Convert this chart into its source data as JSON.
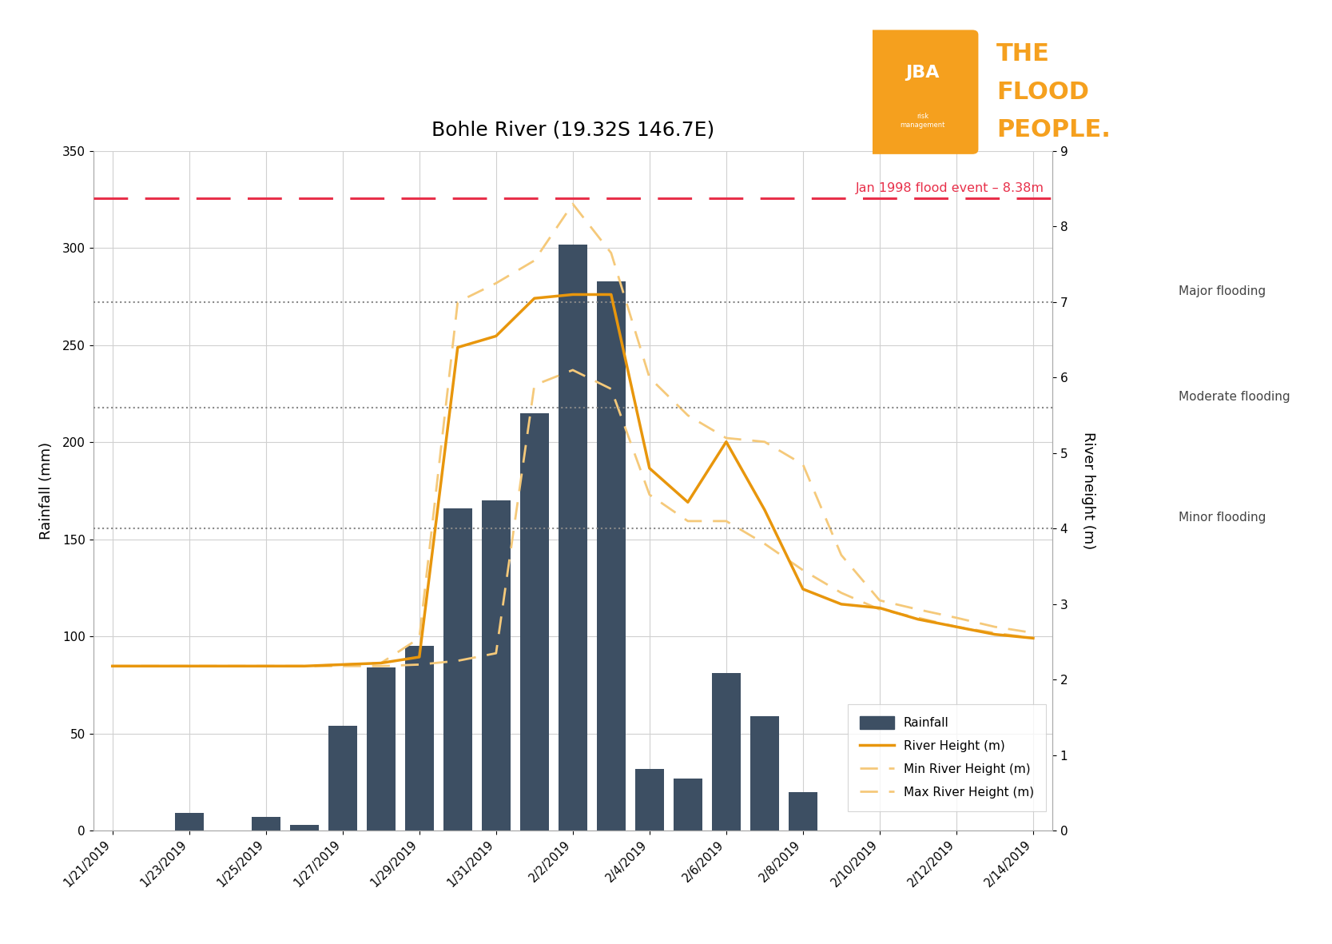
{
  "title": "Bohle River (19.32S 146.7E)",
  "title_fontsize": 18,
  "background_color": "#ffffff",
  "bar_color": "#3d4f63",
  "river_height_color": "#e8960c",
  "min_height_color": "#f5c97a",
  "max_height_color": "#f5c97a",
  "ref_line_color": "#e8304a",
  "flood_line_color": "#888888",
  "ylabel_left": "Rainfall (mm)",
  "ylabel_right": "River height (m)",
  "ylim_left": [
    0,
    350
  ],
  "ylim_right": [
    0,
    9
  ],
  "yticks_left": [
    0,
    50,
    100,
    150,
    200,
    250,
    300,
    350
  ],
  "yticks_right": [
    0,
    1,
    2,
    3,
    4,
    5,
    6,
    7,
    8,
    9
  ],
  "jan1998_level": 8.38,
  "jan1998_label": "Jan 1998 flood event – 8.38m",
  "major_flooding_m": 7.0,
  "moderate_flooding_m": 5.6,
  "minor_flooding_m": 4.0,
  "dates": [
    "1/21/2019",
    "1/22/2019",
    "1/23/2019",
    "1/24/2019",
    "1/25/2019",
    "1/26/2019",
    "1/27/2019",
    "1/28/2019",
    "1/29/2019",
    "1/30/2019",
    "1/31/2019",
    "2/1/2019",
    "2/2/2019",
    "2/3/2019",
    "2/4/2019",
    "2/5/2019",
    "2/6/2019",
    "2/7/2019",
    "2/8/2019",
    "2/9/2019",
    "2/10/2019",
    "2/11/2019",
    "2/12/2019",
    "2/13/2019",
    "2/14/2019"
  ],
  "rainfall": [
    0,
    0,
    9,
    0,
    7,
    3,
    54,
    84,
    95,
    166,
    170,
    215,
    302,
    283,
    32,
    27,
    81,
    59,
    20,
    0,
    0,
    0,
    0,
    0,
    0
  ],
  "river_height": [
    2.18,
    2.18,
    2.18,
    2.18,
    2.18,
    2.18,
    2.2,
    2.22,
    2.3,
    6.4,
    6.55,
    7.05,
    7.1,
    7.1,
    4.8,
    4.35,
    5.15,
    4.25,
    3.2,
    3.0,
    2.95,
    2.8,
    2.7,
    2.6,
    2.55
  ],
  "min_river_height": [
    2.18,
    2.18,
    2.18,
    2.18,
    2.18,
    2.18,
    2.18,
    2.18,
    2.2,
    2.25,
    2.35,
    5.9,
    6.1,
    5.85,
    4.45,
    4.1,
    4.1,
    3.8,
    3.45,
    3.15,
    2.93,
    2.82,
    2.7,
    2.62,
    2.55
  ],
  "max_river_height": [
    2.18,
    2.18,
    2.18,
    2.18,
    2.18,
    2.18,
    2.2,
    2.22,
    2.55,
    7.0,
    7.25,
    7.55,
    8.3,
    7.65,
    6.0,
    5.5,
    5.2,
    5.15,
    4.85,
    3.65,
    3.05,
    2.93,
    2.82,
    2.7,
    2.62
  ],
  "xtick_labels": [
    "1/21/2019",
    "1/23/2019",
    "1/25/2019",
    "1/27/2019",
    "1/29/2019",
    "1/31/2019",
    "2/2/2019",
    "2/4/2019",
    "2/6/2019",
    "2/8/2019",
    "2/10/2019",
    "2/12/2019",
    "2/14/2019"
  ],
  "xtick_positions": [
    0,
    2,
    4,
    6,
    8,
    10,
    12,
    14,
    16,
    18,
    20,
    22,
    24
  ]
}
